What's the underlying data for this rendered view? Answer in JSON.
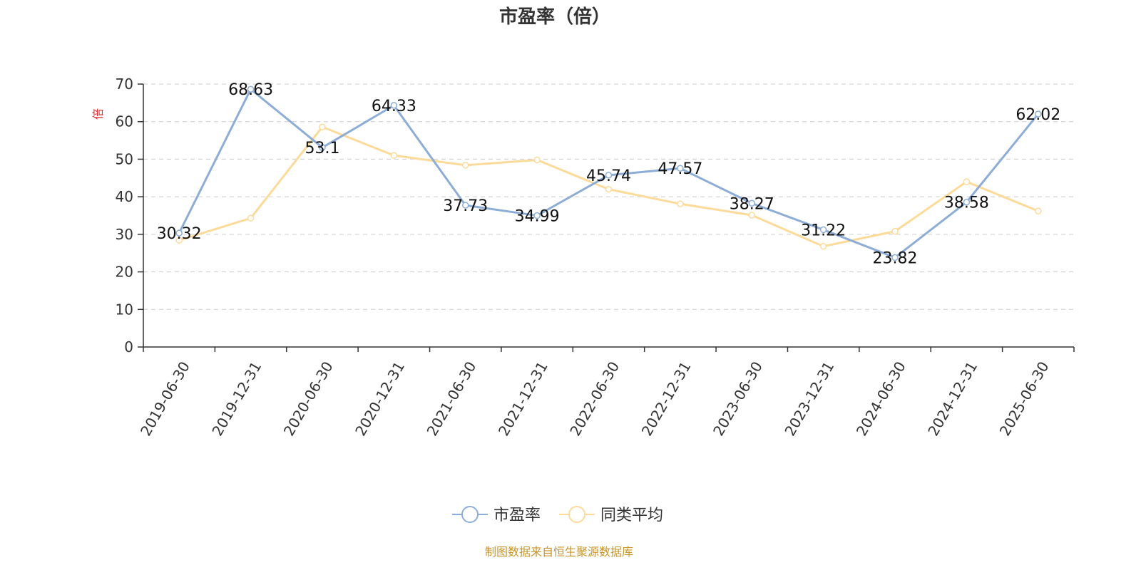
{
  "source_note": "制图数据来自恒生聚源数据库",
  "colors": {
    "series_pe": "#8eadd6",
    "series_avg": "#fcdb9a",
    "grid": "#cccccc",
    "axis": "#333333",
    "ylabel": "#e0282b",
    "source": "#c8952a"
  },
  "chart_data": {
    "type": "line",
    "title": "市盈率（倍）",
    "ylabel": "倍",
    "xlabel": "",
    "ylim": [
      0,
      70
    ],
    "yticks": [
      0,
      10,
      20,
      30,
      40,
      50,
      60,
      70
    ],
    "grid": true,
    "legend_position": "bottom-center",
    "categories": [
      "2019-06-30",
      "2019-12-31",
      "2020-06-30",
      "2020-12-31",
      "2021-06-30",
      "2021-12-31",
      "2022-06-30",
      "2022-12-31",
      "2023-06-30",
      "2023-12-31",
      "2024-06-30",
      "2024-12-31",
      "2025-06-30"
    ],
    "series": [
      {
        "name": "市盈率",
        "values": [
          30.32,
          68.63,
          53.1,
          64.33,
          37.73,
          34.99,
          45.74,
          47.57,
          38.27,
          31.22,
          23.82,
          38.58,
          62.02
        ],
        "labels": [
          "30.32",
          "68.63",
          "53.1",
          "64.33",
          "37.73",
          "34.99",
          "45.74",
          "47.57",
          "38.27",
          "31.22",
          "23.82",
          "38.58",
          "62.02"
        ]
      },
      {
        "name": "同类平均",
        "values": [
          28.4,
          34.3,
          58.6,
          51.0,
          48.4,
          49.8,
          42.0,
          38.1,
          35.1,
          26.8,
          30.8,
          44.0,
          36.2
        ]
      }
    ]
  }
}
